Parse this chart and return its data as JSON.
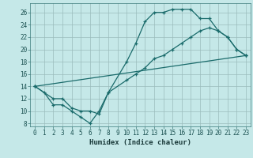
{
  "xlabel": "Humidex (Indice chaleur)",
  "bg_color": "#c5e8e8",
  "grid_color": "#9bbcbc",
  "line_color": "#1a6b6b",
  "xlim": [
    -0.5,
    23.5
  ],
  "ylim": [
    7.5,
    27.5
  ],
  "xticks": [
    0,
    1,
    2,
    3,
    4,
    5,
    6,
    7,
    8,
    9,
    10,
    11,
    12,
    13,
    14,
    15,
    16,
    17,
    18,
    19,
    20,
    21,
    22,
    23
  ],
  "yticks": [
    8,
    10,
    12,
    14,
    16,
    18,
    20,
    22,
    24,
    26
  ],
  "line1_x": [
    0,
    1,
    2,
    3,
    4,
    5,
    6,
    7,
    8,
    10,
    11,
    12,
    13,
    14,
    15,
    16,
    17,
    18,
    19,
    20,
    21,
    22,
    23
  ],
  "line1_y": [
    14,
    13,
    11,
    11,
    10,
    9,
    8,
    10,
    13,
    18,
    21,
    24.5,
    26,
    26,
    26.5,
    26.5,
    26.5,
    25,
    25,
    23,
    22,
    20,
    19
  ],
  "line2_x": [
    0,
    2,
    3,
    4,
    5,
    6,
    7,
    8,
    10,
    11,
    12,
    13,
    14,
    15,
    16,
    17,
    18,
    19,
    20,
    21,
    22,
    23
  ],
  "line2_y": [
    14,
    12,
    12,
    10.5,
    10,
    10,
    9.5,
    13,
    15,
    16,
    17,
    18.5,
    19,
    20,
    21,
    22,
    23,
    23.5,
    23,
    22,
    20,
    19
  ],
  "line3_x": [
    0,
    23
  ],
  "line3_y": [
    14,
    19
  ]
}
